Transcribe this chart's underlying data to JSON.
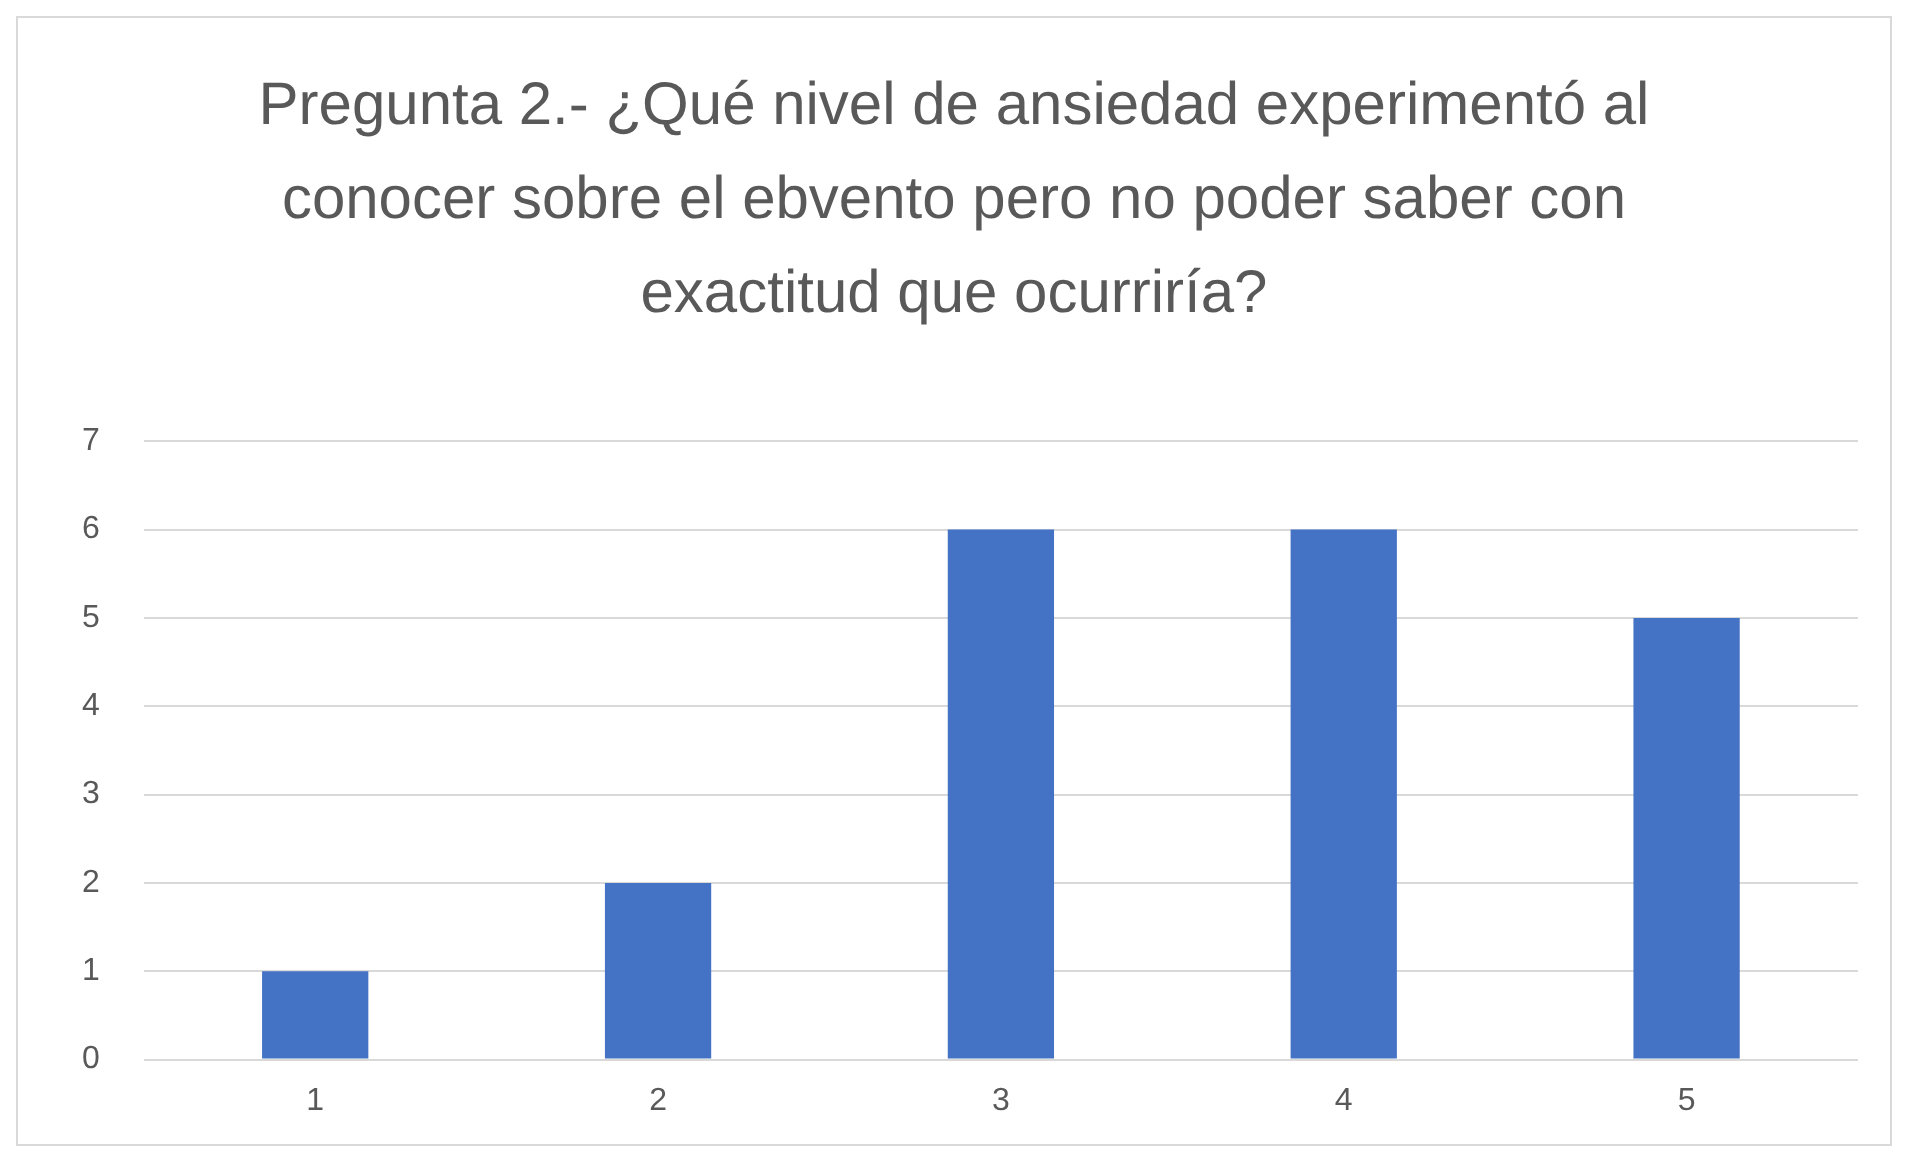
{
  "chart_data": {
    "type": "bar",
    "title": "Pregunta 2.- ¿Qué nivel de ansiedad experimentó al conocer sobre el ebvento pero no poder saber con exactitud que ocurriría?",
    "categories": [
      "1",
      "2",
      "3",
      "4",
      "5"
    ],
    "values": [
      1,
      2,
      6,
      6,
      5
    ],
    "color": "#4472c4",
    "ylim": [
      0,
      7
    ],
    "yticks": [
      0,
      1,
      2,
      3,
      4,
      5,
      6,
      7
    ],
    "grid": "y"
  }
}
